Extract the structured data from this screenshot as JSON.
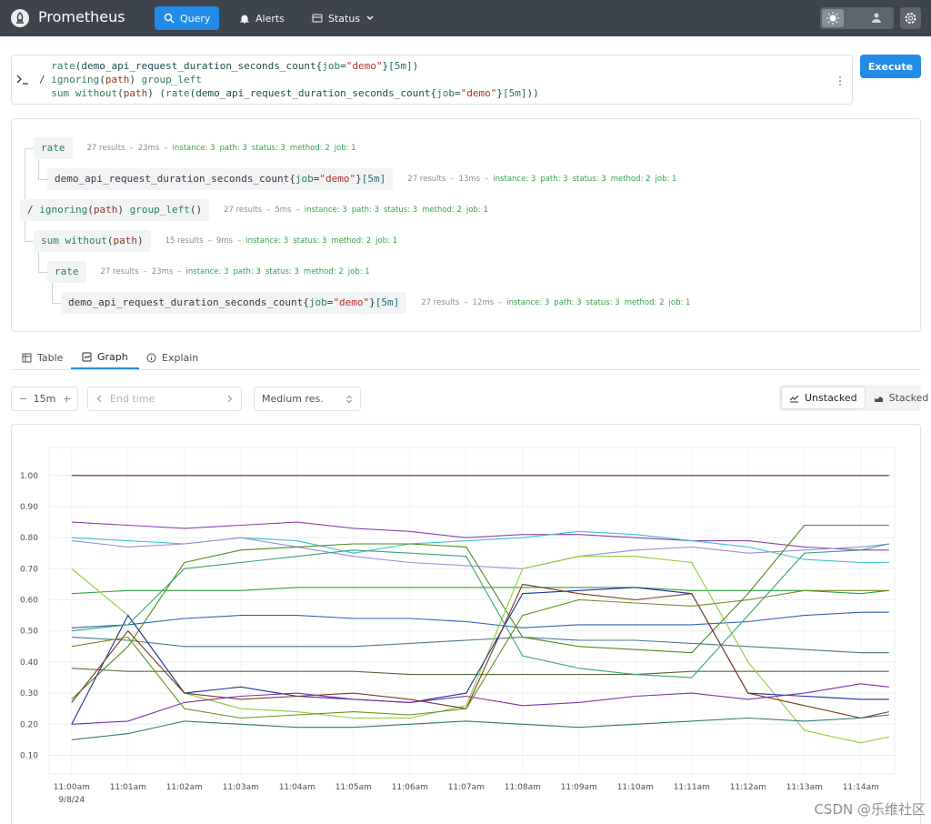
{
  "nav": {
    "brand": "Prometheus",
    "items": [
      "Query",
      "Alerts",
      "Status"
    ],
    "active": 0
  },
  "query": {
    "lines": [
      "  rate(demo_api_request_duration_seconds_count{job=\"demo\"}[5m])",
      "/ ignoring(path) group_left",
      "  sum without(path) (rate(demo_api_request_duration_seconds_count{job=\"demo\"}[5m]))"
    ],
    "execute": "Execute"
  },
  "explain": {
    "separator": "–",
    "tree": {
      "expr": "/ ignoring(path) group_left()",
      "results": "27 results",
      "time": "5ms",
      "labels": [
        "instance: 3",
        "path: 3",
        "status: 3",
        "method: 2",
        "job: 1"
      ],
      "children": [
        {
          "expr": "rate",
          "results": "27 results",
          "time": "23ms",
          "labels": [
            "instance: 3",
            "path: 3",
            "status: 3",
            "method: 2",
            "job: 1"
          ],
          "children": [
            {
              "expr": "demo_api_request_duration_seconds_count{job=\"demo\"}[5m]",
              "results": "27 results",
              "time": "13ms",
              "labels": [
                "instance: 3",
                "path: 3",
                "status: 3",
                "method: 2",
                "job: 1"
              ],
              "children": []
            }
          ]
        },
        {
          "expr": "sum without(path)",
          "results": "15 results",
          "time": "9ms",
          "labels": [
            "instance: 3",
            "status: 3",
            "method: 2",
            "job: 1"
          ],
          "children": [
            {
              "expr": "rate",
              "results": "27 results",
              "time": "23ms",
              "labels": [
                "instance: 3",
                "path: 3",
                "status: 3",
                "method: 2",
                "job: 1"
              ],
              "children": [
                {
                  "expr": "demo_api_request_duration_seconds_count{job=\"demo\"}[5m]",
                  "results": "27 results",
                  "time": "12ms",
                  "labels": [
                    "instance: 3",
                    "path: 3",
                    "status: 3",
                    "method: 2",
                    "job: 1"
                  ],
                  "children": []
                }
              ]
            }
          ]
        }
      ]
    }
  },
  "tabs": {
    "items": [
      "Table",
      "Graph",
      "Explain"
    ],
    "active": 1
  },
  "controls": {
    "range": "15m",
    "end_time": "End time",
    "resolution": "Medium res.",
    "stack_modes": [
      "Unstacked",
      "Stacked"
    ],
    "active_stack_mode": 0
  },
  "chart_data": {
    "type": "line",
    "grid": true,
    "x": [
      0,
      1,
      2,
      3,
      4,
      5,
      6,
      7,
      8,
      9,
      10,
      11,
      12,
      13,
      14,
      14.5
    ],
    "xlim": [
      -0.4,
      14.6
    ],
    "xticks": [
      {
        "value": 0,
        "label": "11:00am"
      },
      {
        "value": 1,
        "label": "11:01am"
      },
      {
        "value": 2,
        "label": "11:02am"
      },
      {
        "value": 3,
        "label": "11:03am"
      },
      {
        "value": 4,
        "label": "11:04am"
      },
      {
        "value": 5,
        "label": "11:05am"
      },
      {
        "value": 6,
        "label": "11:06am"
      },
      {
        "value": 7,
        "label": "11:07am"
      },
      {
        "value": 8,
        "label": "11:08am"
      },
      {
        "value": 9,
        "label": "11:09am"
      },
      {
        "value": 10,
        "label": "11:10am"
      },
      {
        "value": 11,
        "label": "11:11am"
      },
      {
        "value": 12,
        "label": "11:12am"
      },
      {
        "value": 13,
        "label": "11:13am"
      },
      {
        "value": 14,
        "label": "11:14am"
      }
    ],
    "x_date": "9/8/24",
    "ylim": [
      0.04,
      1.09
    ],
    "yticks": [
      {
        "value": 0.1,
        "label": "0.10"
      },
      {
        "value": 0.2,
        "label": "0.20"
      },
      {
        "value": 0.3,
        "label": "0.30"
      },
      {
        "value": 0.4,
        "label": "0.40"
      },
      {
        "value": 0.5,
        "label": "0.50"
      },
      {
        "value": 0.6,
        "label": "0.60"
      },
      {
        "value": 0.7,
        "label": "0.70"
      },
      {
        "value": 0.8,
        "label": "0.80"
      },
      {
        "value": 0.9,
        "label": "0.90"
      },
      {
        "value": 1.0,
        "label": "1.00"
      }
    ],
    "series": [
      {
        "color": "#6b1f3a",
        "values": [
          1.0,
          1.0,
          1.0,
          1.0,
          1.0,
          1.0,
          1.0,
          1.0,
          1.0,
          1.0,
          1.0,
          1.0,
          1.0,
          1.0,
          1.0,
          1.0
        ]
      },
      {
        "color": "#8e3fb0",
        "values": [
          0.85,
          0.84,
          0.83,
          0.84,
          0.85,
          0.83,
          0.82,
          0.8,
          0.81,
          0.81,
          0.8,
          0.79,
          0.79,
          0.77,
          0.76,
          0.76
        ]
      },
      {
        "color": "#3bbfcf",
        "values": [
          0.8,
          0.79,
          0.78,
          0.8,
          0.79,
          0.75,
          0.78,
          0.79,
          0.8,
          0.82,
          0.81,
          0.79,
          0.77,
          0.73,
          0.72,
          0.72
        ]
      },
      {
        "color": "#9a8fe0",
        "values": [
          0.79,
          0.77,
          0.78,
          0.8,
          0.77,
          0.74,
          0.72,
          0.71,
          0.7,
          0.74,
          0.76,
          0.77,
          0.75,
          0.76,
          0.77,
          0.78
        ]
      },
      {
        "color": "#2e9e3e",
        "values": [
          0.62,
          0.63,
          0.63,
          0.63,
          0.64,
          0.64,
          0.64,
          0.64,
          0.64,
          0.64,
          0.64,
          0.63,
          0.63,
          0.63,
          0.62,
          0.63
        ]
      },
      {
        "color": "#2d5fb8",
        "values": [
          0.51,
          0.52,
          0.54,
          0.55,
          0.55,
          0.54,
          0.54,
          0.53,
          0.51,
          0.52,
          0.52,
          0.52,
          0.53,
          0.55,
          0.56,
          0.56
        ]
      },
      {
        "color": "#4a7a8c",
        "values": [
          0.48,
          0.47,
          0.45,
          0.45,
          0.45,
          0.45,
          0.46,
          0.47,
          0.48,
          0.47,
          0.47,
          0.46,
          0.45,
          0.44,
          0.43,
          0.43
        ]
      },
      {
        "color": "#556b2f",
        "values": [
          0.38,
          0.37,
          0.37,
          0.37,
          0.37,
          0.37,
          0.36,
          0.36,
          0.36,
          0.36,
          0.36,
          0.37,
          0.37,
          0.37,
          0.37,
          0.37
        ]
      },
      {
        "color": "#4f8a1e",
        "values": [
          0.28,
          0.45,
          0.72,
          0.76,
          0.77,
          0.78,
          0.78,
          0.77,
          0.48,
          0.45,
          0.44,
          0.43,
          0.62,
          0.84,
          0.84,
          0.84
        ]
      },
      {
        "color": "#8fcc3a",
        "values": [
          0.7,
          0.55,
          0.3,
          0.25,
          0.24,
          0.22,
          0.22,
          0.26,
          0.7,
          0.74,
          0.74,
          0.72,
          0.4,
          0.18,
          0.14,
          0.16
        ]
      },
      {
        "color": "#1f2f9e",
        "values": [
          0.2,
          0.55,
          0.3,
          0.32,
          0.29,
          0.28,
          0.27,
          0.3,
          0.62,
          0.63,
          0.64,
          0.62,
          0.3,
          0.29,
          0.28,
          0.28
        ]
      },
      {
        "color": "#7a3b1a",
        "values": [
          0.27,
          0.5,
          0.3,
          0.28,
          0.29,
          0.3,
          0.28,
          0.25,
          0.65,
          0.62,
          0.6,
          0.62,
          0.3,
          0.26,
          0.22,
          0.24
        ]
      },
      {
        "color": "#7d2fa8",
        "values": [
          0.2,
          0.21,
          0.27,
          0.29,
          0.3,
          0.28,
          0.27,
          0.29,
          0.26,
          0.27,
          0.29,
          0.3,
          0.28,
          0.3,
          0.33,
          0.32
        ]
      },
      {
        "color": "#2f7a6e",
        "values": [
          0.15,
          0.17,
          0.21,
          0.2,
          0.19,
          0.19,
          0.2,
          0.21,
          0.2,
          0.19,
          0.2,
          0.21,
          0.22,
          0.21,
          0.22,
          0.23
        ]
      },
      {
        "color": "#3aa37a",
        "values": [
          0.5,
          0.52,
          0.7,
          0.72,
          0.74,
          0.76,
          0.75,
          0.74,
          0.42,
          0.38,
          0.36,
          0.35,
          0.55,
          0.75,
          0.76,
          0.78
        ]
      },
      {
        "color": "#6b8e23",
        "values": [
          0.45,
          0.48,
          0.25,
          0.22,
          0.23,
          0.24,
          0.23,
          0.25,
          0.55,
          0.6,
          0.59,
          0.58,
          0.6,
          0.63,
          0.63,
          0.63
        ]
      }
    ]
  },
  "watermark": "CSDN @乐维社区"
}
